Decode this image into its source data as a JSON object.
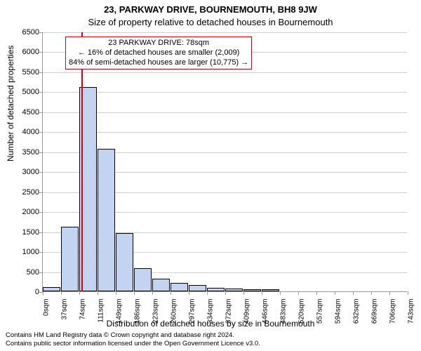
{
  "title": "23, PARKWAY DRIVE, BOURNEMOUTH, BH8 9JW",
  "subtitle": "Size of property relative to detached houses in Bournemouth",
  "y_axis": {
    "label": "Number of detached properties",
    "min": 0,
    "max": 6500,
    "step": 500,
    "ticks": [
      0,
      500,
      1000,
      1500,
      2000,
      2500,
      3000,
      3500,
      4000,
      4500,
      5000,
      5500,
      6000,
      6500
    ]
  },
  "x_axis": {
    "label": "Distribution of detached houses by size in Bournemouth",
    "tick_labels": [
      "0sqm",
      "37sqm",
      "74sqm",
      "111sqm",
      "149sqm",
      "186sqm",
      "223sqm",
      "260sqm",
      "297sqm",
      "334sqm",
      "372sqm",
      "409sqm",
      "446sqm",
      "483sqm",
      "520sqm",
      "557sqm",
      "594sqm",
      "632sqm",
      "669sqm",
      "706sqm",
      "743sqm"
    ],
    "min": 0,
    "max": 743
  },
  "bars": {
    "values": [
      100,
      1620,
      5110,
      3570,
      1450,
      580,
      320,
      210,
      160,
      90,
      70,
      60,
      50,
      0,
      0,
      0,
      0,
      0,
      0,
      0
    ],
    "fill_color": "#c3d3f0",
    "border_color": "#000000"
  },
  "marker": {
    "sqm": 78,
    "color": "#d00018",
    "box": {
      "line1": "23 PARKWAY DRIVE: 78sqm",
      "line2": "← 16% of detached houses are smaller (2,009)",
      "line3": "84% of semi-detached houses are larger (10,775) →"
    }
  },
  "footer": {
    "line1": "Contains HM Land Registry data © Crown copyright and database right 2024.",
    "line2": "Contains public sector information licensed under the Open Government Licence v3.0."
  },
  "style": {
    "background": "#ffffff",
    "grid_color": "#d0d0d0",
    "axis_color": "#999999",
    "text_color": "#000000",
    "title_fontsize": 13,
    "label_fontsize": 12,
    "tick_fontsize": 11
  }
}
